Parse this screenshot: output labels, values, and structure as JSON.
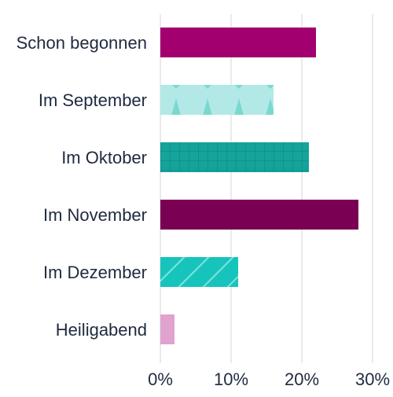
{
  "chart_data": {
    "type": "bar",
    "orientation": "horizontal",
    "categories": [
      "Schon begonnen",
      "Im September",
      "Im Oktober",
      "Im November",
      "Im Dezember",
      "Heiligabend"
    ],
    "values": [
      22,
      16,
      21,
      28,
      11,
      2
    ],
    "xlim": [
      0,
      30
    ],
    "x_ticks": [
      0,
      10,
      20,
      30
    ],
    "x_tick_labels": [
      "0%",
      "10%",
      "20%",
      "30%"
    ],
    "grid": "vertical",
    "legend": "none",
    "title": "",
    "xlabel": "",
    "ylabel": "",
    "bar_styles": [
      {
        "color": "#a3006f",
        "pattern": "solid"
      },
      {
        "color": "#b2e9e6",
        "pattern": "triangles",
        "pattern_color": "#7ad8d2"
      },
      {
        "color": "#15a39a",
        "pattern": "grid",
        "pattern_color": "#0e8a82"
      },
      {
        "color": "#7a0053",
        "pattern": "solid"
      },
      {
        "color": "#17c4bc",
        "pattern": "diagonal",
        "pattern_color": "#7ee3dd"
      },
      {
        "color": "#e0a2cf",
        "pattern": "solid"
      }
    ],
    "colors": {
      "text": "#1f2a3f",
      "grid": "#dcdcdc"
    }
  }
}
